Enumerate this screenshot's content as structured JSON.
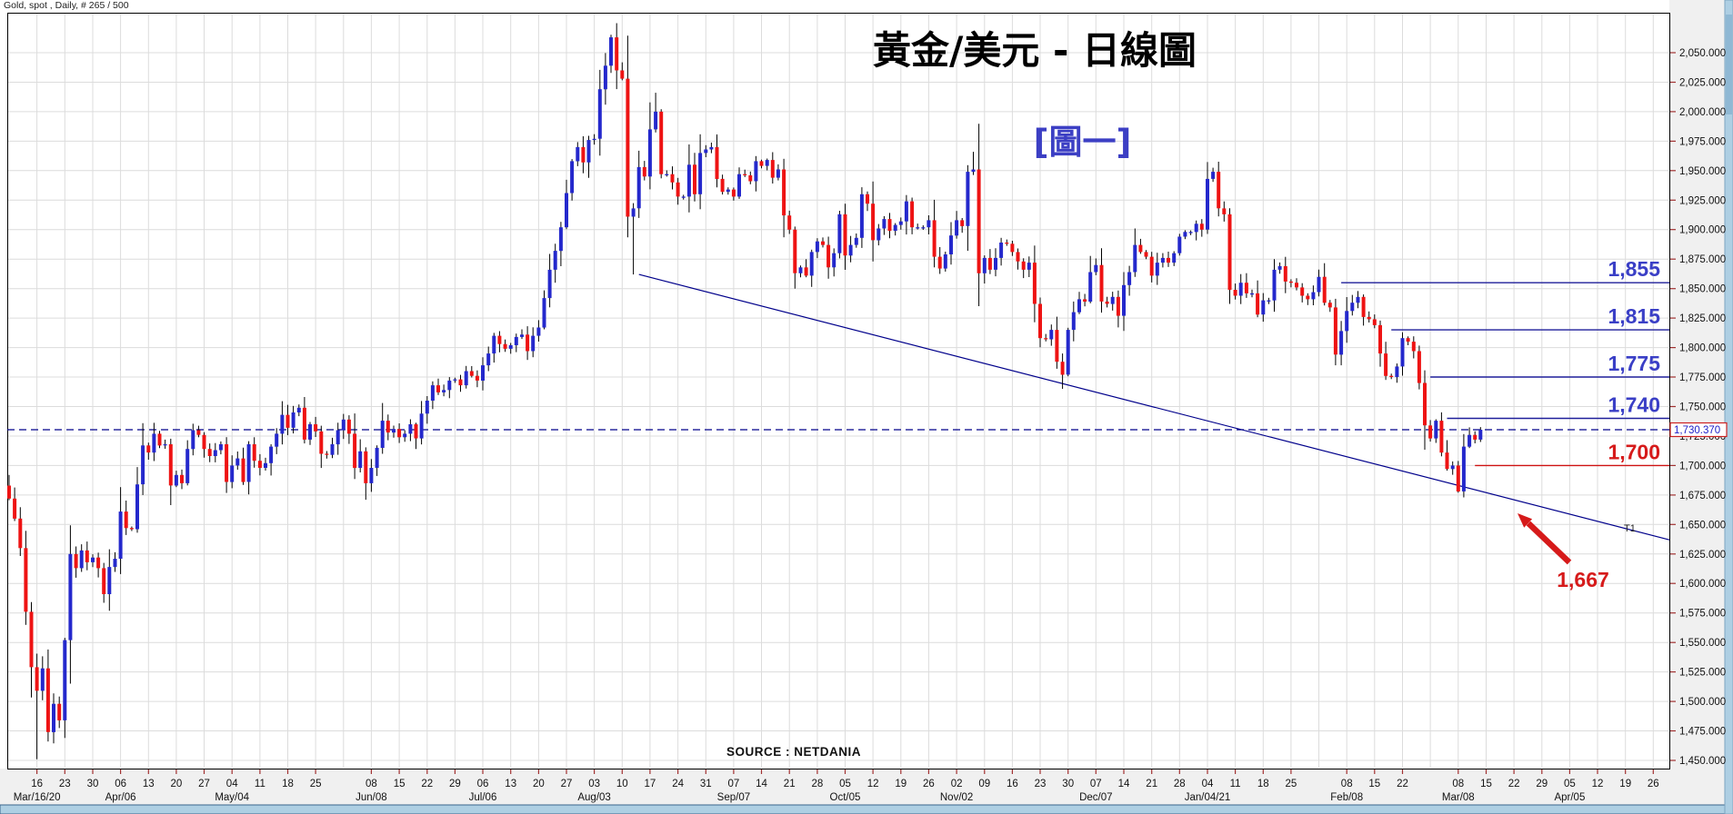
{
  "window": {
    "instrument_label": "Gold, spot , Daily, # 265 / 500"
  },
  "titles": {
    "main": "黃金/美元 - 日線圖",
    "figure_tag": "[圖一]",
    "source": "SOURCE : NETDANIA"
  },
  "chart_data": {
    "type": "candlestick",
    "title": "黃金/美元 - 日線圖 (Gold spot vs USD, daily)",
    "y_axis": {
      "min": 1450,
      "max": 2050,
      "step": 25,
      "decimals": 3,
      "side": "right"
    },
    "x_axis": {
      "day_ticks": [
        {
          "label": "16",
          "index": 5
        },
        {
          "label": "23",
          "index": 10
        },
        {
          "label": "30",
          "index": 15
        },
        {
          "label": "06",
          "index": 20
        },
        {
          "label": "13",
          "index": 25
        },
        {
          "label": "20",
          "index": 30
        },
        {
          "label": "27",
          "index": 35
        },
        {
          "label": "04",
          "index": 40
        },
        {
          "label": "11",
          "index": 45
        },
        {
          "label": "18",
          "index": 50
        },
        {
          "label": "25",
          "index": 55
        },
        {
          "label": "08",
          "index": 65
        },
        {
          "label": "15",
          "index": 70
        },
        {
          "label": "22",
          "index": 75
        },
        {
          "label": "29",
          "index": 80
        },
        {
          "label": "06",
          "index": 85
        },
        {
          "label": "13",
          "index": 90
        },
        {
          "label": "20",
          "index": 95
        },
        {
          "label": "27",
          "index": 100
        },
        {
          "label": "03",
          "index": 105
        },
        {
          "label": "10",
          "index": 110
        },
        {
          "label": "17",
          "index": 115
        },
        {
          "label": "24",
          "index": 120
        },
        {
          "label": "31",
          "index": 125
        },
        {
          "label": "07",
          "index": 130
        },
        {
          "label": "14",
          "index": 135
        },
        {
          "label": "21",
          "index": 140
        },
        {
          "label": "28",
          "index": 145
        },
        {
          "label": "05",
          "index": 150
        },
        {
          "label": "12",
          "index": 155
        },
        {
          "label": "19",
          "index": 160
        },
        {
          "label": "26",
          "index": 165
        },
        {
          "label": "02",
          "index": 170
        },
        {
          "label": "09",
          "index": 175
        },
        {
          "label": "16",
          "index": 180
        },
        {
          "label": "23",
          "index": 185
        },
        {
          "label": "30",
          "index": 190
        },
        {
          "label": "07",
          "index": 195
        },
        {
          "label": "14",
          "index": 200
        },
        {
          "label": "21",
          "index": 205
        },
        {
          "label": "28",
          "index": 210
        },
        {
          "label": "04",
          "index": 215
        },
        {
          "label": "11",
          "index": 220
        },
        {
          "label": "18",
          "index": 225
        },
        {
          "label": "25",
          "index": 230
        },
        {
          "label": "08",
          "index": 240
        },
        {
          "label": "15",
          "index": 245
        },
        {
          "label": "22",
          "index": 250
        },
        {
          "label": "08",
          "index": 260
        },
        {
          "label": "15",
          "index": 265
        },
        {
          "label": "22",
          "index": 270
        },
        {
          "label": "29",
          "index": 275
        },
        {
          "label": "05",
          "index": 280
        },
        {
          "label": "12",
          "index": 285
        },
        {
          "label": "19",
          "index": 290
        },
        {
          "label": "26",
          "index": 295
        }
      ],
      "month_ticks": [
        {
          "label": "Mar/16/20",
          "index": 5
        },
        {
          "label": "Apr/06",
          "index": 20
        },
        {
          "label": "May/04",
          "index": 40
        },
        {
          "label": "Jun/08",
          "index": 65
        },
        {
          "label": "Jul/06",
          "index": 85
        },
        {
          "label": "Aug/03",
          "index": 105
        },
        {
          "label": "Sep/07",
          "index": 130
        },
        {
          "label": "Oct/05",
          "index": 150
        },
        {
          "label": "Nov/02",
          "index": 170
        },
        {
          "label": "Dec/07",
          "index": 195
        },
        {
          "label": "Jan/04/21",
          "index": 215
        },
        {
          "label": "Feb/08",
          "index": 240
        },
        {
          "label": "Mar/08",
          "index": 260
        },
        {
          "label": "Apr/05",
          "index": 280
        }
      ]
    },
    "first_open": 1683,
    "closes": [
      1672,
      1655,
      1630,
      1576,
      1529,
      1509,
      1528,
      1474,
      1498,
      1484,
      1552,
      1625,
      1613,
      1628,
      1618,
      1622,
      1613,
      1591,
      1614,
      1621,
      1661,
      1647,
      1646,
      1684,
      1717,
      1711,
      1727,
      1717,
      1718,
      1683,
      1692,
      1685,
      1714,
      1730,
      1726,
      1714,
      1708,
      1713,
      1718,
      1686,
      1700,
      1706,
      1686,
      1718,
      1704,
      1698,
      1702,
      1716,
      1727,
      1743,
      1732,
      1745,
      1749,
      1722,
      1735,
      1729,
      1710,
      1709,
      1718,
      1730,
      1739,
      1727,
      1698,
      1712,
      1685,
      1698,
      1715,
      1738,
      1728,
      1731,
      1724,
      1727,
      1735,
      1723,
      1744,
      1755,
      1768,
      1762,
      1764,
      1772,
      1773,
      1768,
      1780,
      1776,
      1772,
      1785,
      1795,
      1810,
      1803,
      1799,
      1802,
      1809,
      1811,
      1797,
      1810,
      1817,
      1842,
      1866,
      1882,
      1902,
      1931,
      1958,
      1970,
      1957,
      1976,
      1977,
      2019,
      2039,
      2063,
      2035,
      2028,
      1911,
      1918,
      1953,
      1945,
      1985,
      2000,
      1947,
      1947,
      1940,
      1928,
      1928,
      1955,
      1930,
      1965,
      1968,
      1970,
      1943,
      1932,
      1934,
      1928,
      1947,
      1946,
      1941,
      1958,
      1954,
      1959,
      1944,
      1951,
      1912,
      1900,
      1863,
      1868,
      1861,
      1881,
      1890,
      1887,
      1868,
      1880,
      1913,
      1878,
      1887,
      1893,
      1930,
      1922,
      1891,
      1901,
      1909,
      1899,
      1904,
      1907,
      1924,
      1902,
      1902,
      1902,
      1908,
      1877,
      1867,
      1879,
      1895,
      1908,
      1903,
      1949,
      1951,
      1863,
      1876,
      1866,
      1876,
      1889,
      1888,
      1881,
      1873,
      1866,
      1872,
      1837,
      1808,
      1807,
      1815,
      1788,
      1777,
      1815,
      1830,
      1841,
      1839,
      1864,
      1870,
      1839,
      1837,
      1843,
      1827,
      1853,
      1864,
      1887,
      1881,
      1877,
      1861,
      1872,
      1876,
      1872,
      1880,
      1894,
      1898,
      1898,
      1905,
      1900,
      1943,
      1949,
      1918,
      1913,
      1849,
      1844,
      1855,
      1846,
      1846,
      1828,
      1840,
      1840,
      1866,
      1869,
      1856,
      1855,
      1851,
      1844,
      1841,
      1847,
      1860,
      1838,
      1834,
      1794,
      1814,
      1831,
      1838,
      1843,
      1826,
      1824,
      1819,
      1795,
      1776,
      1775,
      1784,
      1808,
      1805,
      1797,
      1770,
      1734,
      1723,
      1738,
      1711,
      1697,
      1700,
      1678,
      1716,
      1726,
      1722,
      1730.37
    ],
    "extremes": {
      "0": {
        "high": 1692
      },
      "5": {
        "low": 1451
      },
      "7": {
        "low": 1466
      },
      "109": {
        "high": 2075
      },
      "112": {
        "low": 1862
      },
      "116": {
        "high": 2016
      },
      "173": {
        "high": 1966
      },
      "189": {
        "low": 1765
      },
      "219": {
        "low": 1837
      },
      "238": {
        "low": 1785
      },
      "260": {
        "low": 1677
      }
    },
    "last_price": "1,730.370",
    "last_price_value": 1730.37,
    "levels": [
      {
        "label": "1,855",
        "value": 1855,
        "start_index": 239,
        "color": "blue"
      },
      {
        "label": "1,815",
        "value": 1815,
        "start_index": 248,
        "color": "blue"
      },
      {
        "label": "1,775",
        "value": 1775,
        "start_index": 255,
        "color": "blue"
      },
      {
        "label": "1,740",
        "value": 1740,
        "start_index": 258,
        "color": "blue"
      },
      {
        "label": "1,700",
        "value": 1700,
        "start_index": 263,
        "color": "red"
      }
    ],
    "trendline": {
      "label": "T1",
      "from": {
        "index": 113,
        "value": 1862
      },
      "to": {
        "index": 298,
        "value": 1637
      }
    },
    "annotation": {
      "label": "1,667",
      "value": 1667
    },
    "colors": {
      "up": "#2428cc",
      "down": "#ee1313",
      "wick": "#000000",
      "level_blue": "#1f1f9a",
      "level_red": "#cf1212",
      "label_blue": "#3a3fc6",
      "label_red": "#d61a1a",
      "dashed": "#00008b",
      "trend": "#00008b",
      "grid": "#dcdcdc",
      "tick": "#a03030",
      "axis_text": "#111111",
      "price_box_border": "#cc2222",
      "price_box_text": "#2020c8"
    }
  }
}
